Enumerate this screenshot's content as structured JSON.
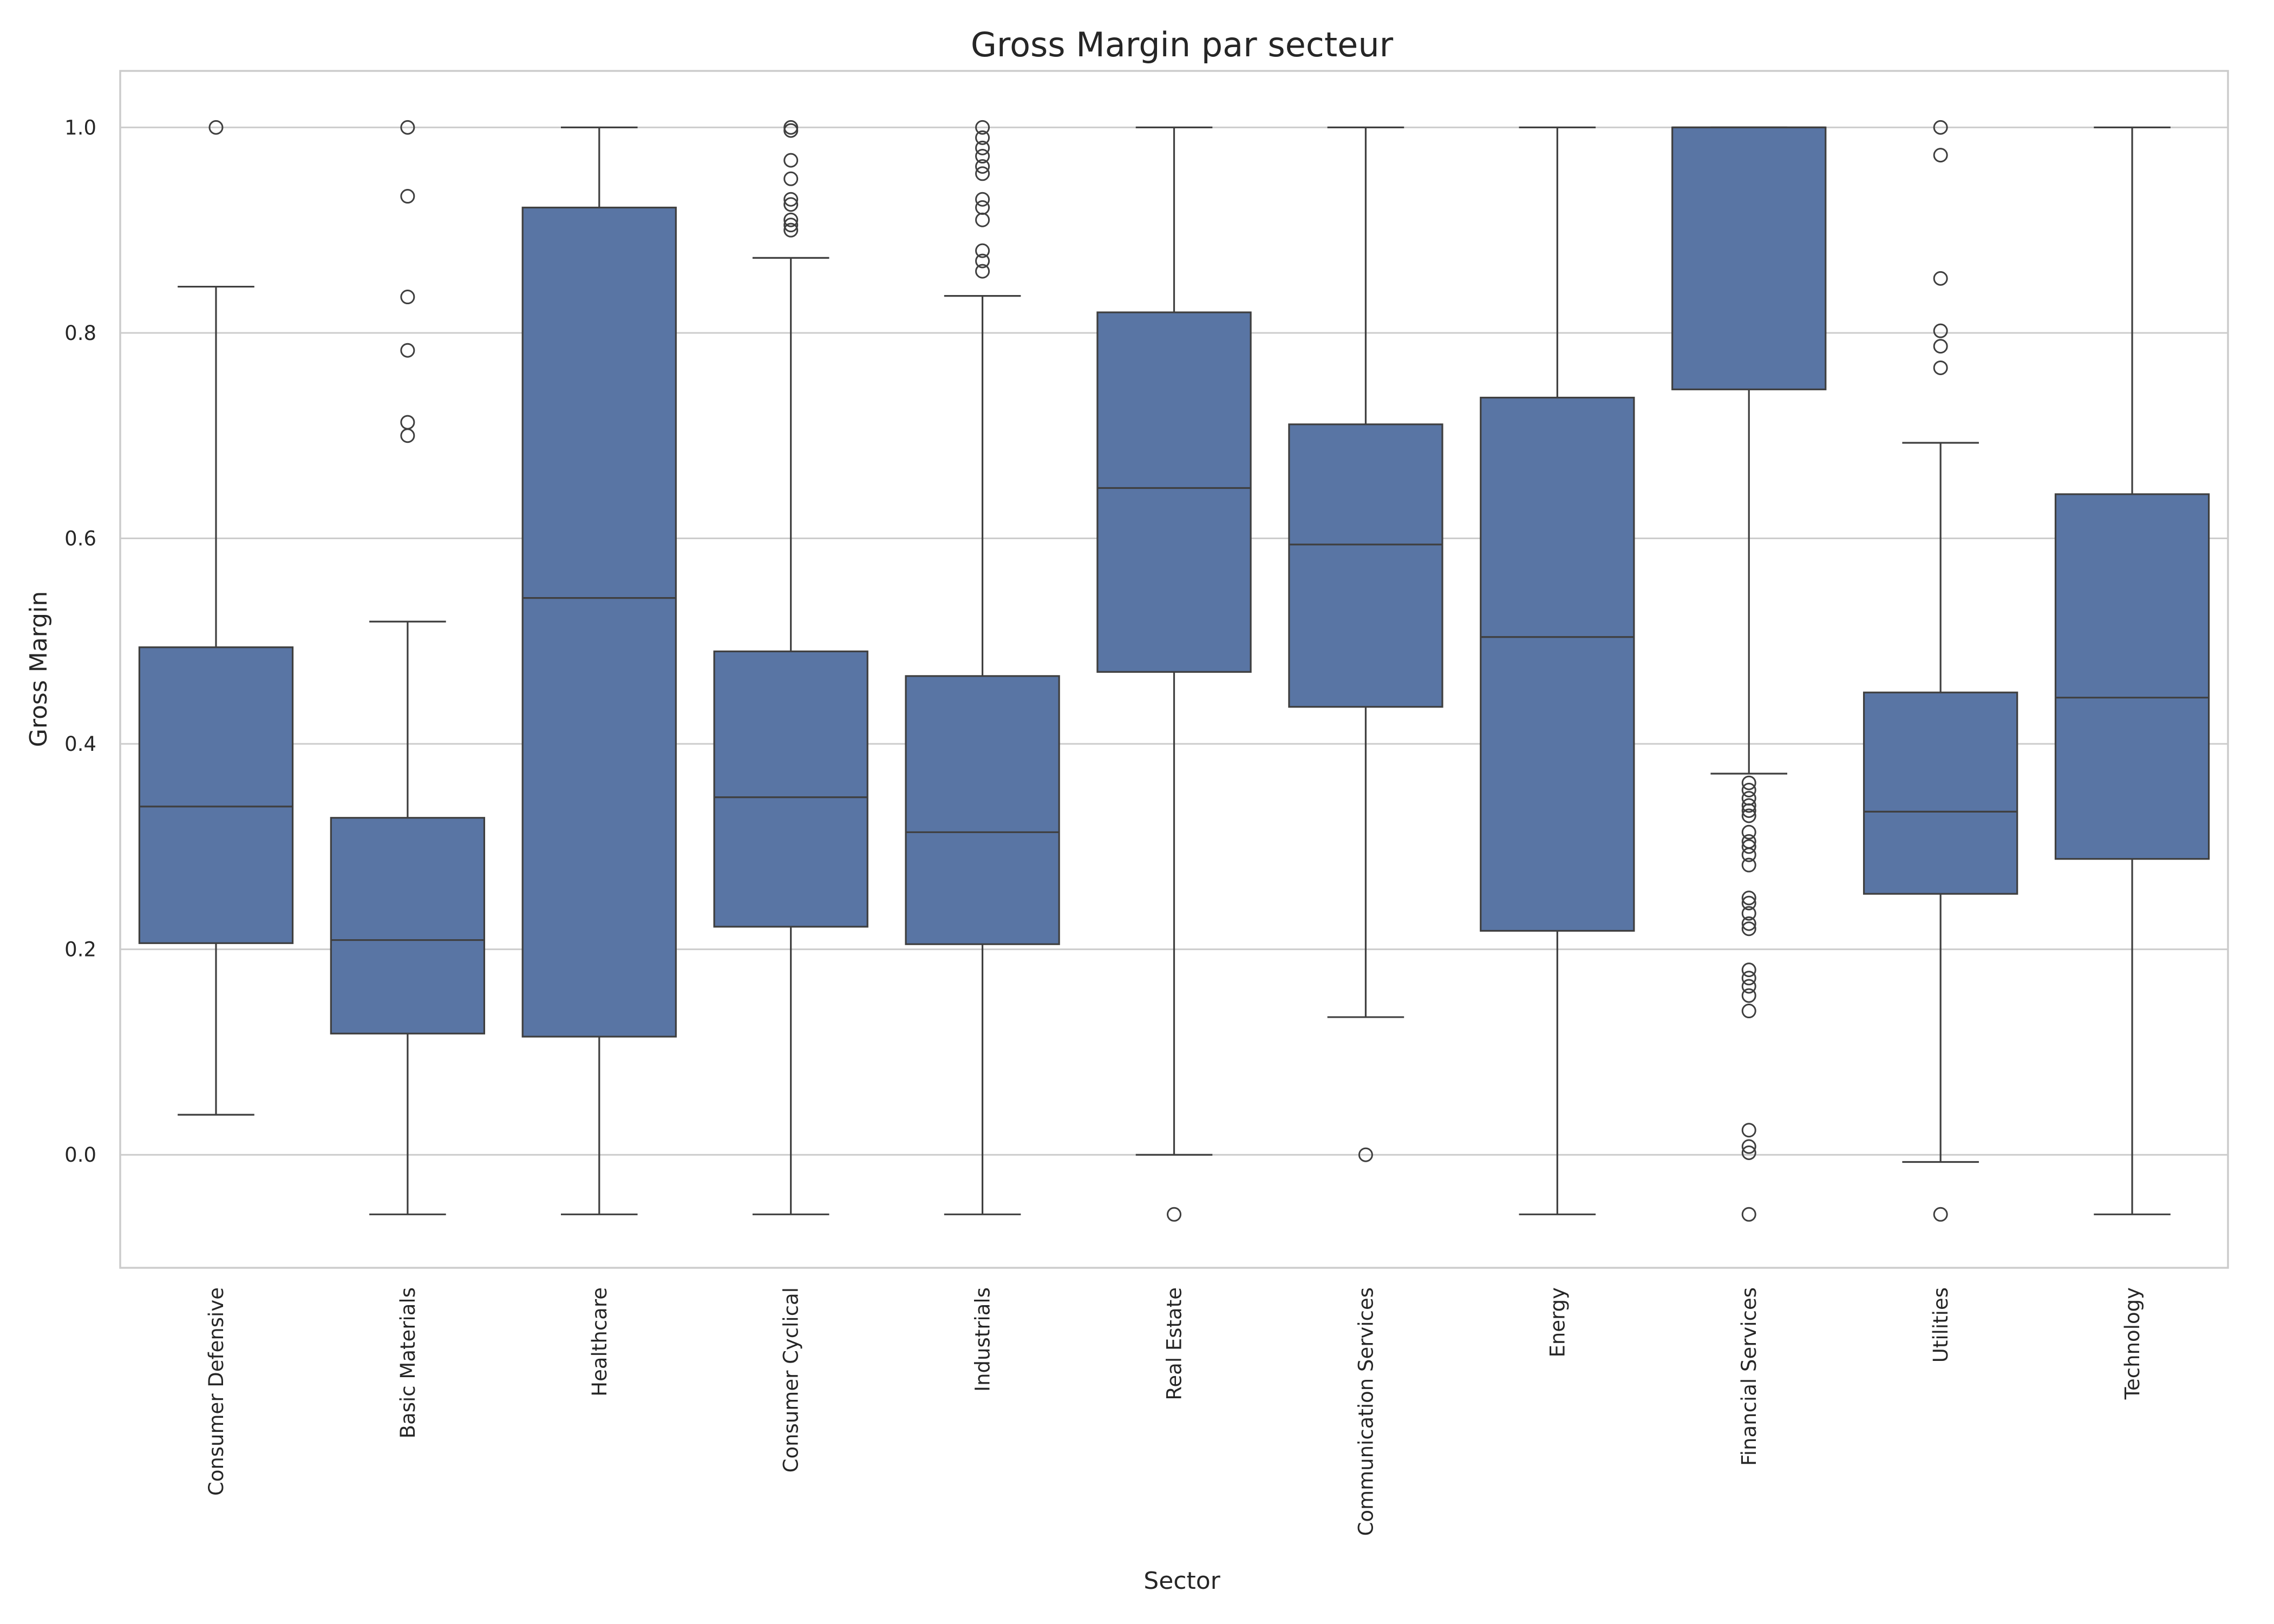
{
  "chart_data": {
    "type": "box",
    "title": "Gross Margin par secteur",
    "xlabel": "Sector",
    "ylabel": "Gross Margin",
    "ylim": [
      -0.11,
      1.055
    ],
    "yticks": [
      0.0,
      0.2,
      0.4,
      0.6,
      0.8,
      1.0
    ],
    "ytick_labels": [
      "0.0",
      "0.2",
      "0.4",
      "0.6",
      "0.8",
      "1.0"
    ],
    "grid": "horizontal",
    "box_color": "#5975a4",
    "line_color": "#3f3f3f",
    "categories": [
      "Consumer Defensive",
      "Basic Materials",
      "Healthcare",
      "Consumer Cyclical",
      "Industrials",
      "Real Estate",
      "Communication Services",
      "Energy",
      "Financial Services",
      "Utilities",
      "Technology"
    ],
    "boxes": [
      {
        "q1": 0.206,
        "median": 0.339,
        "q3": 0.494,
        "whisker_low": 0.039,
        "whisker_high": 0.845,
        "fliers": [
          1.0
        ]
      },
      {
        "q1": 0.118,
        "median": 0.209,
        "q3": 0.328,
        "whisker_low": -0.058,
        "whisker_high": 0.519,
        "fliers": [
          1.0,
          0.933,
          0.835,
          0.783,
          0.713,
          0.7
        ]
      },
      {
        "q1": 0.115,
        "median": 0.542,
        "q3": 0.922,
        "whisker_low": -0.058,
        "whisker_high": 1.0,
        "fliers": []
      },
      {
        "q1": 0.222,
        "median": 0.348,
        "q3": 0.49,
        "whisker_low": -0.058,
        "whisker_high": 0.873,
        "fliers": [
          1.0,
          0.997,
          0.968,
          0.95,
          0.93,
          0.925,
          0.91,
          0.905,
          0.9
        ]
      },
      {
        "q1": 0.205,
        "median": 0.314,
        "q3": 0.466,
        "whisker_low": -0.058,
        "whisker_high": 0.836,
        "fliers": [
          1.0,
          0.99,
          0.98,
          0.972,
          0.962,
          0.955,
          0.93,
          0.922,
          0.91,
          0.88,
          0.87,
          0.86
        ]
      },
      {
        "q1": 0.47,
        "median": 0.649,
        "q3": 0.82,
        "whisker_low": 0.0,
        "whisker_high": 1.0,
        "fliers": [
          -0.058
        ]
      },
      {
        "q1": 0.436,
        "median": 0.594,
        "q3": 0.711,
        "whisker_low": 0.134,
        "whisker_high": 1.0,
        "fliers": [
          0.0
        ]
      },
      {
        "q1": 0.218,
        "median": 0.504,
        "q3": 0.737,
        "whisker_low": -0.058,
        "whisker_high": 1.0,
        "fliers": []
      },
      {
        "q1": 0.745,
        "median": 1.0,
        "q3": 1.0,
        "whisker_low": 0.371,
        "whisker_high": 1.0,
        "fliers": [
          0.362,
          0.355,
          0.347,
          0.34,
          0.335,
          0.33,
          0.314,
          0.305,
          0.3,
          0.292,
          0.282,
          0.25,
          0.245,
          0.235,
          0.225,
          0.22,
          0.18,
          0.172,
          0.164,
          0.155,
          0.14,
          0.024,
          0.008,
          0.002,
          -0.058
        ]
      },
      {
        "q1": 0.254,
        "median": 0.334,
        "q3": 0.45,
        "whisker_low": -0.007,
        "whisker_high": 0.693,
        "fliers": [
          1.0,
          0.973,
          0.853,
          0.802,
          0.787,
          0.766,
          -0.058
        ]
      },
      {
        "q1": 0.288,
        "median": 0.445,
        "q3": 0.643,
        "whisker_low": -0.058,
        "whisker_high": 1.0,
        "fliers": []
      }
    ]
  }
}
